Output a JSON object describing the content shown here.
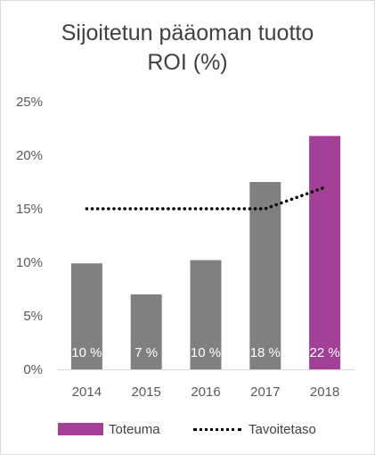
{
  "chart_data": {
    "type": "bar",
    "title_lines": [
      "Sijoitetun pääoman tuotto",
      "ROI (%)"
    ],
    "categories": [
      "2014",
      "2015",
      "2016",
      "2017",
      "2018"
    ],
    "series": [
      {
        "name": "Toteuma",
        "type": "bar",
        "values": [
          9.9,
          7.0,
          10.2,
          17.5,
          21.8
        ],
        "data_labels": [
          "10 %",
          "7 %",
          "10 %",
          "18 %",
          "22 %"
        ],
        "colors": [
          "#808080",
          "#808080",
          "#808080",
          "#808080",
          "#a23f97"
        ]
      },
      {
        "name": "Tavoitetaso",
        "type": "line",
        "style": "dotted",
        "color": "#000000",
        "values": [
          15,
          15,
          15,
          15,
          17
        ]
      }
    ],
    "ylim": [
      0,
      25
    ],
    "yticks": [
      0,
      5,
      10,
      15,
      20,
      25
    ],
    "ytick_labels": [
      "0%",
      "5%",
      "10%",
      "15%",
      "20%",
      "25%"
    ],
    "legend_position": "bottom",
    "grid": false
  }
}
